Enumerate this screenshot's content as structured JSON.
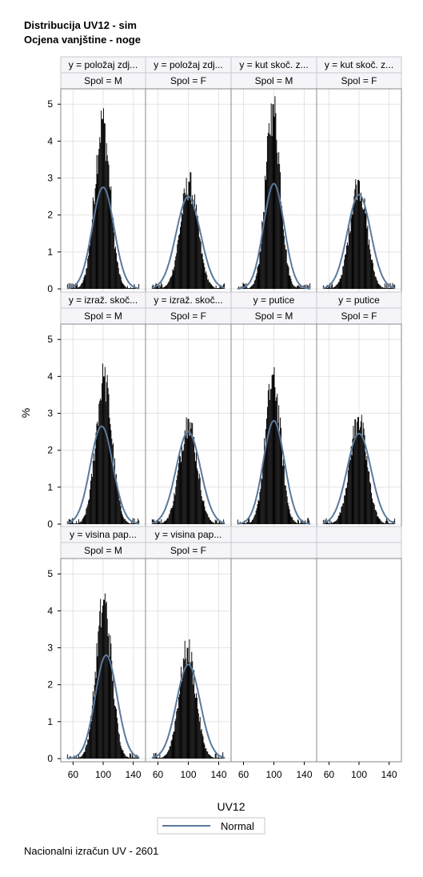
{
  "titles": {
    "line1": "Distribucija UV12 - sim",
    "line2": "Ocjena vanjštine - noge"
  },
  "footnote": "Nacionalni izračun UV - 2601",
  "chart_data": {
    "type": "histogram-panel",
    "xlabel": "UV12",
    "ylabel": "%",
    "xlim": [
      50,
      150
    ],
    "xticks": [
      60,
      100,
      140
    ],
    "ylim": [
      0,
      5.2
    ],
    "yticks": [
      0,
      1,
      2,
      3,
      4,
      5
    ],
    "grid": true,
    "legend": {
      "position": "bottom-center",
      "entries": [
        {
          "label": "Normal",
          "color": "#5A7A9C",
          "style": "line"
        }
      ]
    },
    "colors": {
      "bars": "#000000",
      "normal_curve": "#5A7A9C",
      "panel_border": "#8A8A8A",
      "header_bg": "#F5F5F9",
      "grid": "#E4E4E4"
    },
    "panels": [
      {
        "y": "y = položaj zdj...",
        "spol": "Spol = M",
        "peak_x": 99,
        "peak_pct": 4.6,
        "normal_mean": 100,
        "normal_sd": 14.5,
        "normal_peak_pct": 2.75
      },
      {
        "y": "y = položaj zdj...",
        "spol": "Spol = F",
        "peak_x": 101,
        "peak_pct": 2.9,
        "normal_mean": 100,
        "normal_sd": 16.0,
        "normal_peak_pct": 2.5
      },
      {
        "y": "y = kut skoč. z...",
        "spol": "Spol = M",
        "peak_x": 99,
        "peak_pct": 5.0,
        "normal_mean": 100,
        "normal_sd": 13.5,
        "normal_peak_pct": 2.85
      },
      {
        "y": "y = kut skoč. z...",
        "spol": "Spol = F",
        "peak_x": 99,
        "peak_pct": 2.95,
        "normal_mean": 100,
        "normal_sd": 15.5,
        "normal_peak_pct": 2.55
      },
      {
        "y": "y = izraž. skoč...",
        "spol": "Spol = M",
        "peak_x": 101,
        "peak_pct": 4.0,
        "normal_mean": 98,
        "normal_sd": 15.0,
        "normal_peak_pct": 2.65
      },
      {
        "y": "y = izraž. skoč...",
        "spol": "Spol = F",
        "peak_x": 100,
        "peak_pct": 2.85,
        "normal_mean": 100,
        "normal_sd": 16.0,
        "normal_peak_pct": 2.5
      },
      {
        "y": "y = putice",
        "spol": "Spol = M",
        "peak_x": 99,
        "peak_pct": 4.05,
        "normal_mean": 100,
        "normal_sd": 14.0,
        "normal_peak_pct": 2.8
      },
      {
        "y": "y = putice",
        "spol": "Spol = F",
        "peak_x": 99,
        "peak_pct": 2.9,
        "normal_mean": 100,
        "normal_sd": 16.0,
        "normal_peak_pct": 2.45
      },
      {
        "y": "y = visina pap...",
        "spol": "Spol = M",
        "peak_x": 101,
        "peak_pct": 4.3,
        "normal_mean": 104,
        "normal_sd": 14.5,
        "normal_peak_pct": 2.8
      },
      {
        "y": "y = visina pap...",
        "spol": "Spol = F",
        "peak_x": 99,
        "peak_pct": 3.0,
        "normal_mean": 100,
        "normal_sd": 15.5,
        "normal_peak_pct": 2.55
      },
      {
        "y": "",
        "spol": "",
        "empty": true
      },
      {
        "y": "",
        "spol": "",
        "empty": true
      }
    ]
  }
}
